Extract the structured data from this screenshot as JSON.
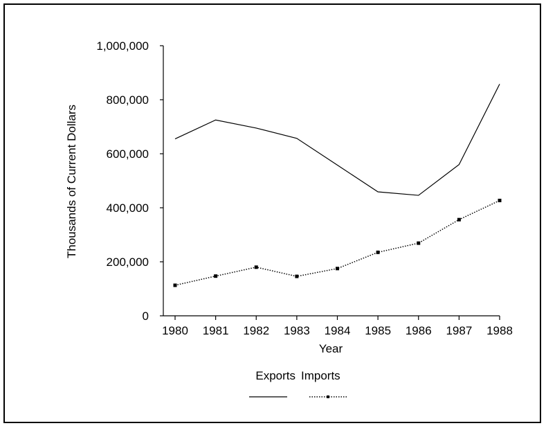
{
  "chart_data": {
    "type": "line",
    "title": "",
    "xlabel": "Year",
    "ylabel": "Thousands of Current Dollars",
    "x": [
      "1980",
      "1981",
      "1982",
      "1983",
      "1984",
      "1985",
      "1986",
      "1987",
      "1988"
    ],
    "ylim": [
      0,
      1000000
    ],
    "yticks": [
      0,
      200000,
      400000,
      600000,
      800000,
      1000000
    ],
    "ytick_labels": [
      "0",
      "200,000",
      "400,000",
      "600,000",
      "800,000",
      "1,000,000"
    ],
    "grid": false,
    "legend_position": "bottom-center",
    "series": [
      {
        "name": "Exports",
        "style": "solid",
        "color": "#000000",
        "values": [
          655000,
          725000,
          695000,
          657000,
          558000,
          459000,
          446000,
          560000,
          858000
        ]
      },
      {
        "name": "Imports",
        "style": "dotted-with-square-markers",
        "color": "#000000",
        "values": [
          113000,
          147000,
          180000,
          146000,
          175000,
          235000,
          269000,
          356000,
          427000
        ]
      }
    ]
  }
}
